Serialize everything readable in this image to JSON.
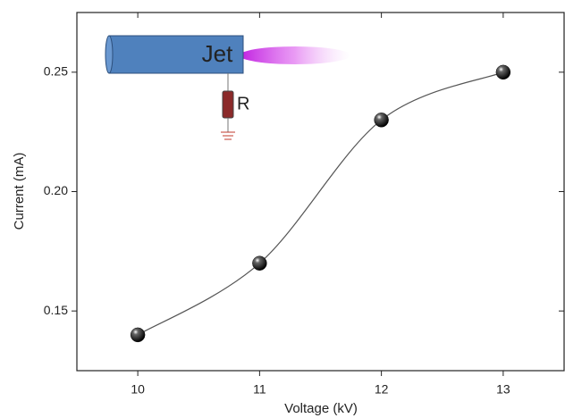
{
  "chart_data": {
    "type": "scatter",
    "smooth_line": true,
    "x_label": "Voltage (kV)",
    "y_label": "Current (mA)",
    "x": [
      10,
      11,
      12,
      13
    ],
    "values": [
      0.14,
      0.17,
      0.23,
      0.25
    ],
    "color": "#111111",
    "line_color": "#555555",
    "xlim": [
      9.5,
      13.5
    ],
    "ylim": [
      0.125,
      0.275
    ],
    "xticks": [
      10,
      11,
      12,
      13
    ],
    "yticks": [
      0.15,
      {
        "value": 0.2,
        "label": "0.20"
      },
      0.25
    ],
    "annotations": [
      "Jet",
      "R"
    ]
  }
}
